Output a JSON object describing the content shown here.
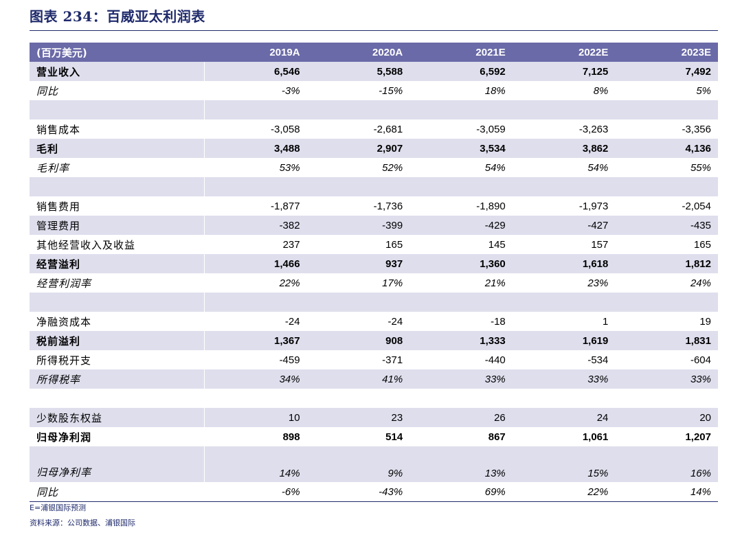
{
  "title": "图表 234：百威亚太利润表",
  "header": {
    "unit": "(百万美元)",
    "years": [
      "2019A",
      "2020A",
      "2021E",
      "2022E",
      "2023E"
    ]
  },
  "rows": [
    {
      "label": "营业收入",
      "values": [
        "6,546",
        "5,588",
        "6,592",
        "7,125",
        "7,492"
      ],
      "style": "bold shade"
    },
    {
      "label": "同比",
      "values": [
        "-3%",
        "-15%",
        "18%",
        "8%",
        "5%"
      ],
      "style": "italic"
    },
    {
      "label": "",
      "values": [
        "",
        "",
        "",
        "",
        ""
      ],
      "style": "shade"
    },
    {
      "label": "销售成本",
      "values": [
        "-3,058",
        "-2,681",
        "-3,059",
        "-3,263",
        "-3,356"
      ],
      "style": ""
    },
    {
      "label": "毛利",
      "values": [
        "3,488",
        "2,907",
        "3,534",
        "3,862",
        "4,136"
      ],
      "style": "bold shade"
    },
    {
      "label": "毛利率",
      "values": [
        "53%",
        "52%",
        "54%",
        "54%",
        "55%"
      ],
      "style": "italic"
    },
    {
      "label": "",
      "values": [
        "",
        "",
        "",
        "",
        ""
      ],
      "style": "shade"
    },
    {
      "label": "销售费用",
      "values": [
        "-1,877",
        "-1,736",
        "-1,890",
        "-1,973",
        "-2,054"
      ],
      "style": ""
    },
    {
      "label": "管理费用",
      "values": [
        "-382",
        "-399",
        "-429",
        "-427",
        "-435"
      ],
      "style": "shade"
    },
    {
      "label": "其他经营收入及收益",
      "values": [
        "237",
        "165",
        "145",
        "157",
        "165"
      ],
      "style": ""
    },
    {
      "label": "经营溢利",
      "values": [
        "1,466",
        "937",
        "1,360",
        "1,618",
        "1,812"
      ],
      "style": "bold shade"
    },
    {
      "label": "经营利润率",
      "values": [
        "22%",
        "17%",
        "21%",
        "23%",
        "24%"
      ],
      "style": "italic"
    },
    {
      "label": "",
      "values": [
        "",
        "",
        "",
        "",
        ""
      ],
      "style": "shade"
    },
    {
      "label": "净融资成本",
      "values": [
        "-24",
        "-24",
        "-18",
        "1",
        "19"
      ],
      "style": ""
    },
    {
      "label": "税前溢利",
      "values": [
        "1,367",
        "908",
        "1,333",
        "1,619",
        "1,831"
      ],
      "style": "bold shade"
    },
    {
      "label": "所得税开支",
      "values": [
        "-459",
        "-371",
        "-440",
        "-534",
        "-604"
      ],
      "style": ""
    },
    {
      "label": "所得税率",
      "values": [
        "34%",
        "41%",
        "33%",
        "33%",
        "33%"
      ],
      "style": "italic shade"
    },
    {
      "label": "",
      "values": [
        "",
        "",
        "",
        "",
        ""
      ],
      "style": ""
    },
    {
      "label": "少数股东权益",
      "values": [
        "10",
        "23",
        "26",
        "24",
        "20"
      ],
      "style": "shade"
    },
    {
      "label": "归母净利润",
      "values": [
        "898",
        "514",
        "867",
        "1,061",
        "1,207"
      ],
      "style": "bold"
    },
    {
      "label": "归母净利率",
      "values": [
        "14%",
        "9%",
        "13%",
        "15%",
        "16%"
      ],
      "style": "italic shade tall"
    },
    {
      "label": "同比",
      "values": [
        "-6%",
        "-43%",
        "69%",
        "22%",
        "14%"
      ],
      "style": "italic last"
    }
  ],
  "footnotes": [
    "E=浦银国际预测",
    "资料来源：公司数据、浦银国际"
  ]
}
